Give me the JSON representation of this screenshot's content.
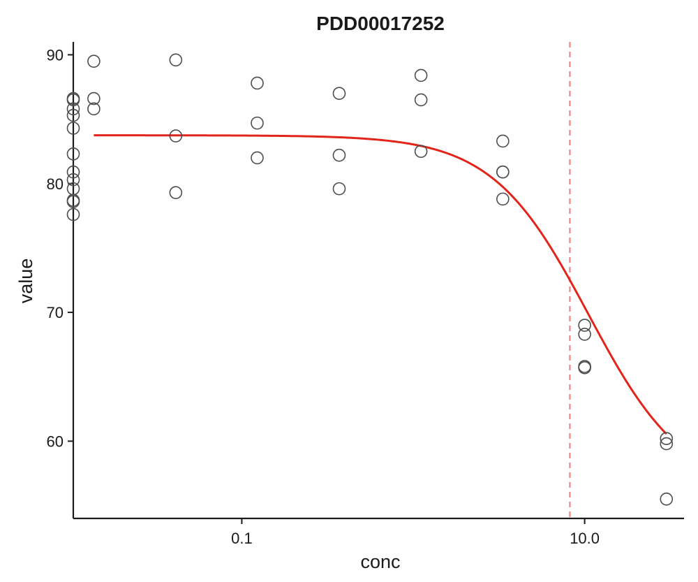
{
  "chart_data": {
    "type": "scatter",
    "title": "PDD00017252",
    "xlabel": "conc",
    "ylabel": "value",
    "x_scale": "log10",
    "xlim": [
      0.0104,
      38
    ],
    "ylim": [
      54.0,
      91.0
    ],
    "x_ticks": [
      {
        "value": 0.1,
        "label": "0.1"
      },
      {
        "value": 10.0,
        "label": "10.0"
      }
    ],
    "y_ticks": [
      {
        "value": 60,
        "label": "60"
      },
      {
        "value": 70,
        "label": "70"
      },
      {
        "value": 80,
        "label": "80"
      },
      {
        "value": 90,
        "label": "90"
      }
    ],
    "grid": false,
    "legend": "none",
    "points": [
      {
        "x": 0.0104,
        "y": 86.6
      },
      {
        "x": 0.0104,
        "y": 86.5
      },
      {
        "x": 0.0104,
        "y": 85.8
      },
      {
        "x": 0.0104,
        "y": 85.3
      },
      {
        "x": 0.0104,
        "y": 84.3
      },
      {
        "x": 0.0104,
        "y": 82.3
      },
      {
        "x": 0.0104,
        "y": 80.9
      },
      {
        "x": 0.0104,
        "y": 80.3
      },
      {
        "x": 0.0104,
        "y": 79.6
      },
      {
        "x": 0.0104,
        "y": 78.7
      },
      {
        "x": 0.0104,
        "y": 78.6
      },
      {
        "x": 0.0104,
        "y": 77.6
      },
      {
        "x": 0.0137,
        "y": 89.5
      },
      {
        "x": 0.0137,
        "y": 86.6
      },
      {
        "x": 0.0137,
        "y": 85.8
      },
      {
        "x": 0.0412,
        "y": 89.6
      },
      {
        "x": 0.0412,
        "y": 83.7
      },
      {
        "x": 0.0412,
        "y": 79.3
      },
      {
        "x": 0.123,
        "y": 87.8
      },
      {
        "x": 0.123,
        "y": 84.7
      },
      {
        "x": 0.123,
        "y": 82.0
      },
      {
        "x": 0.37,
        "y": 87.0
      },
      {
        "x": 0.37,
        "y": 82.2
      },
      {
        "x": 0.37,
        "y": 79.6
      },
      {
        "x": 1.11,
        "y": 88.4
      },
      {
        "x": 1.11,
        "y": 86.5
      },
      {
        "x": 1.11,
        "y": 82.5
      },
      {
        "x": 3.33,
        "y": 83.3
      },
      {
        "x": 3.33,
        "y": 80.9
      },
      {
        "x": 3.33,
        "y": 80.9
      },
      {
        "x": 3.33,
        "y": 78.8
      },
      {
        "x": 10.0,
        "y": 69.0
      },
      {
        "x": 10.0,
        "y": 68.3
      },
      {
        "x": 10.0,
        "y": 65.8
      },
      {
        "x": 10.0,
        "y": 65.7
      },
      {
        "x": 30.0,
        "y": 60.2
      },
      {
        "x": 30.0,
        "y": 59.8
      },
      {
        "x": 30.0,
        "y": 55.5
      }
    ],
    "fit_curve": {
      "model": "log-logistic",
      "top": 83.75,
      "bottom": 56.0,
      "ec50": 10.5,
      "hill": 1.55,
      "x_range": [
        0.0137,
        30.0
      ],
      "color": "#e3241b"
    },
    "reference_line": {
      "x": 8.2,
      "color": "#ec8585",
      "style": "dashed"
    },
    "marker_color": "#4d4d4d"
  }
}
